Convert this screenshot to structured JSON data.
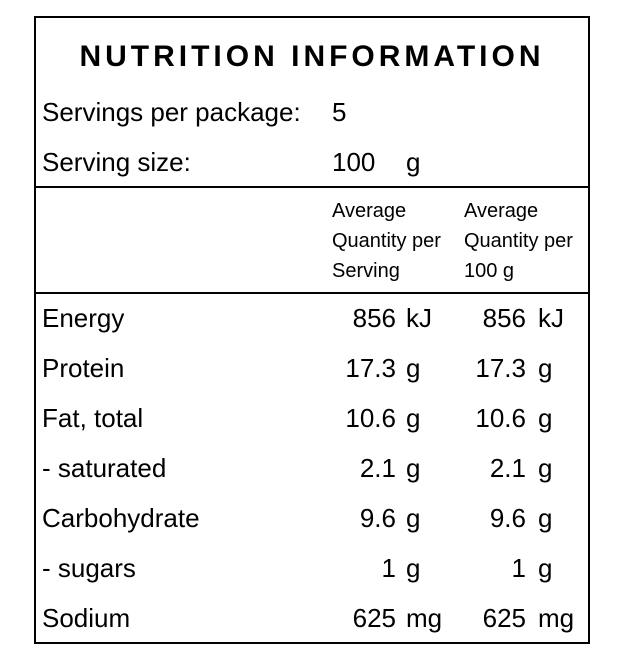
{
  "panel": {
    "title": "NUTRITION INFORMATION",
    "servings": {
      "label": "Servings per package:",
      "value": "5"
    },
    "serving_size": {
      "label": "Serving size:",
      "value": "100",
      "unit": "g"
    },
    "columns": {
      "per_serving": [
        "Average",
        "Quantity per",
        "Serving"
      ],
      "per_100g": [
        "Average",
        "Quantity per",
        "100 g"
      ]
    },
    "rows": [
      {
        "name": "Energy",
        "serving": "856",
        "serving_unit": "kJ",
        "per100": "856",
        "per100_unit": "kJ"
      },
      {
        "name": "Protein",
        "serving": "17.3",
        "serving_unit": "g",
        "per100": "17.3",
        "per100_unit": "g"
      },
      {
        "name": "Fat, total",
        "serving": "10.6",
        "serving_unit": "g",
        "per100": "10.6",
        "per100_unit": "g"
      },
      {
        "name": "- saturated",
        "serving": "2.1",
        "serving_unit": "g",
        "per100": "2.1",
        "per100_unit": "g"
      },
      {
        "name": "Carbohydrate",
        "serving": "9.6",
        "serving_unit": "g",
        "per100": "9.6",
        "per100_unit": "g"
      },
      {
        "name": "- sugars",
        "serving": "1",
        "serving_unit": "g",
        "per100": "1",
        "per100_unit": "g"
      },
      {
        "name": "Sodium",
        "serving": "625",
        "serving_unit": "mg",
        "per100": "625",
        "per100_unit": "mg"
      }
    ]
  }
}
